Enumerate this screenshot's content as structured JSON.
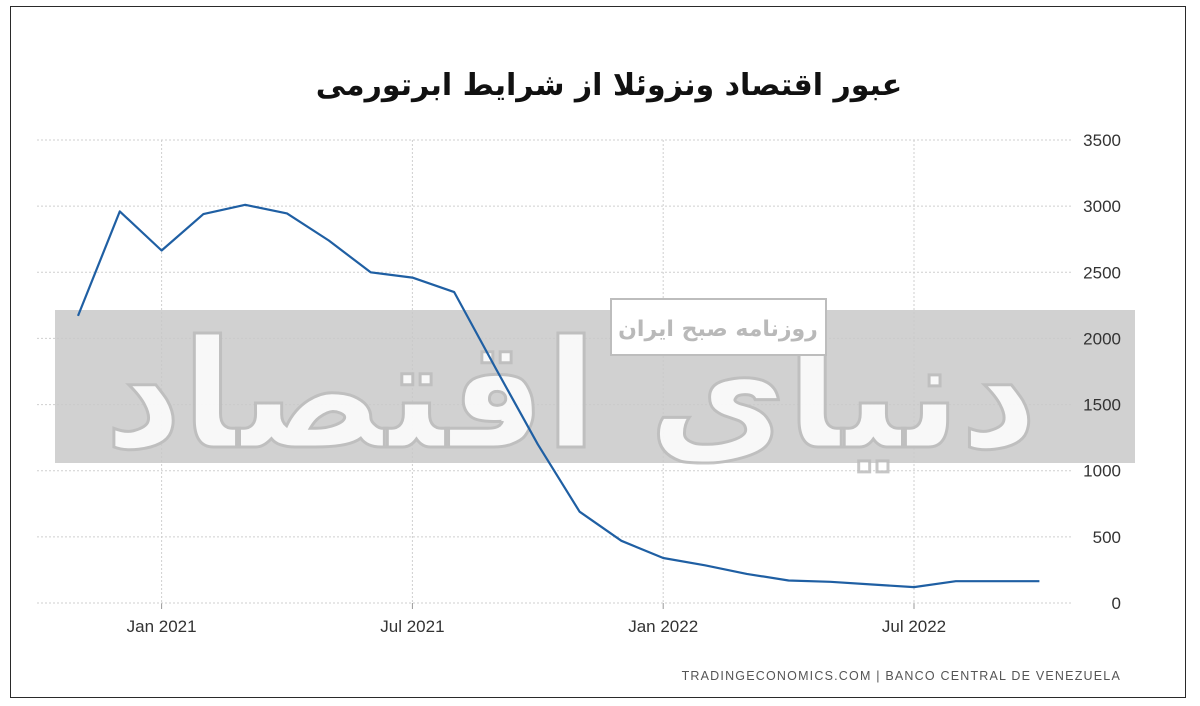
{
  "chart_data": {
    "type": "line",
    "title": "عبور اقتصاد ونزوئلا از شرایط ابرتورمی",
    "xlabel": "",
    "ylabel": "",
    "ylim": [
      0,
      3500
    ],
    "y_ticks": [
      0,
      500,
      1000,
      1500,
      2000,
      2500,
      3000,
      3500
    ],
    "x_tick_labels": [
      "Jan 2021",
      "Jul 2021",
      "Jan 2022",
      "Jul 2022"
    ],
    "grid": true,
    "y_axis_position": "right",
    "x": [
      "2020-11",
      "2020-12",
      "2021-01",
      "2021-02",
      "2021-03",
      "2021-04",
      "2021-05",
      "2021-06",
      "2021-07",
      "2021-08",
      "2021-09",
      "2021-10",
      "2021-11",
      "2021-12",
      "2022-01",
      "2022-02",
      "2022-03",
      "2022-04",
      "2022-05",
      "2022-06",
      "2022-07",
      "2022-08",
      "2022-09",
      "2022-10"
    ],
    "series": [
      {
        "values": [
          2170,
          2960,
          2665,
          2940,
          3010,
          2945,
          2740,
          2500,
          2460,
          2350,
          1770,
          1200,
          690,
          470,
          340,
          285,
          220,
          170,
          160,
          140,
          120,
          165,
          165,
          165
        ],
        "color": "#1f5fa3"
      }
    ],
    "source": "TRADINGECONOMICS.COM | BANCO CENTRAL DE VENEZUELA"
  },
  "watermark": {
    "banner": "روزنامه صبح ایران",
    "logo_text": "دنیای اقتصاد"
  }
}
